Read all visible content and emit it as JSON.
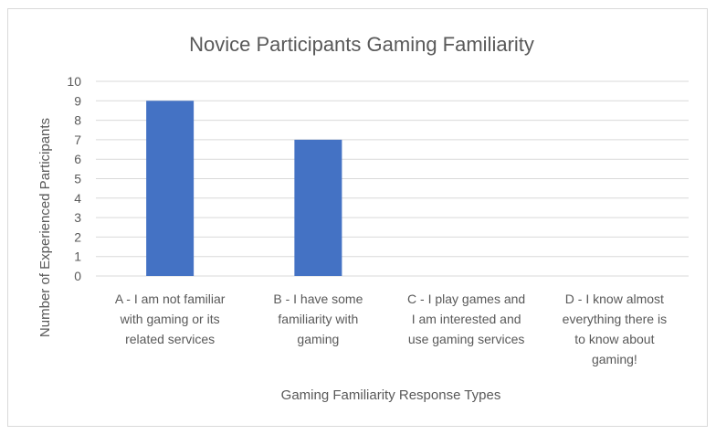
{
  "chart_data": {
    "type": "bar",
    "title": "Novice Participants Gaming Familiarity",
    "xlabel": "Gaming Familiarity Response Types",
    "ylabel": "Number of Experienced Participants",
    "categories": [
      [
        "A - I am not familiar",
        "with gaming or its",
        "related services"
      ],
      [
        "B - I have some",
        "familiarity with",
        "gaming"
      ],
      [
        "C - I play games and",
        "I am interested and",
        "use gaming services"
      ],
      [
        "D - I know almost",
        "everything there is",
        "to know about",
        "gaming!"
      ]
    ],
    "values": [
      9,
      7,
      0,
      0
    ],
    "ylim": [
      0,
      10
    ],
    "yticks": [
      0,
      1,
      2,
      3,
      4,
      5,
      6,
      7,
      8,
      9,
      10
    ],
    "grid": true,
    "legend": "none",
    "bar_color": "#4472c4"
  }
}
